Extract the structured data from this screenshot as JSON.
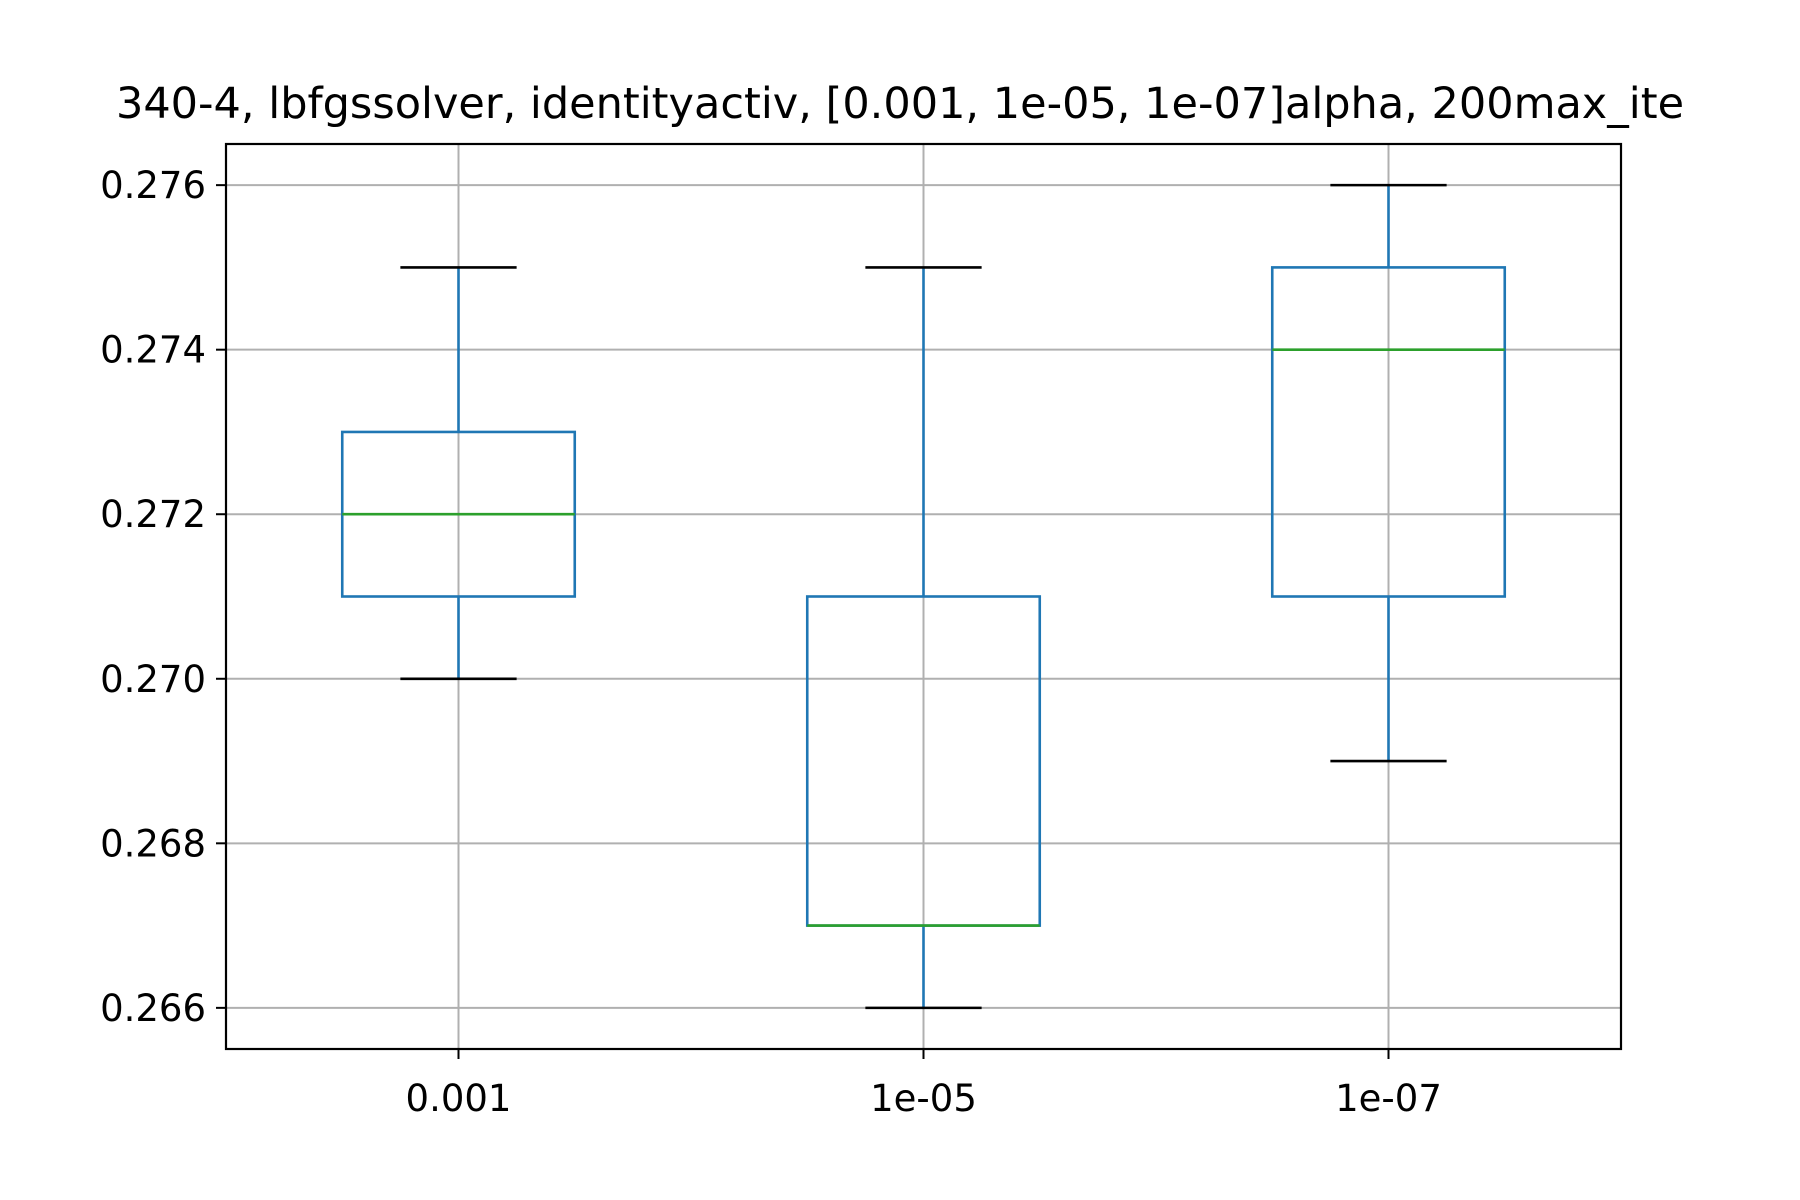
{
  "chart_data": {
    "type": "box",
    "title": "340-4, lbfgssolver, identityactiv, [0.001, 1e-05, 1e-07]alpha, 200max_ite",
    "xlabel": "",
    "ylabel": "",
    "categories": [
      "0.001",
      "1e-05",
      "1e-07"
    ],
    "boxes": [
      {
        "category": "0.001",
        "whisker_low": 0.27,
        "q1": 0.271,
        "median": 0.272,
        "q3": 0.273,
        "whisker_high": 0.275
      },
      {
        "category": "1e-05",
        "whisker_low": 0.266,
        "q1": 0.267,
        "median": 0.267,
        "q3": 0.271,
        "whisker_high": 0.275
      },
      {
        "category": "1e-07",
        "whisker_low": 0.269,
        "q1": 0.271,
        "median": 0.274,
        "q3": 0.275,
        "whisker_high": 0.276
      }
    ],
    "ylim": [
      0.2655,
      0.2765
    ],
    "yticks": [
      0.266,
      0.268,
      0.27,
      0.272,
      0.274,
      0.276
    ],
    "ytick_labels": [
      "0.266",
      "0.268",
      "0.270",
      "0.272",
      "0.274",
      "0.276"
    ],
    "grid": true,
    "colors": {
      "box": "#1f77b4",
      "median": "#2ca02c",
      "whisker_cap": "#000000",
      "grid": "#b0b0b0",
      "axes": "#000000"
    }
  }
}
